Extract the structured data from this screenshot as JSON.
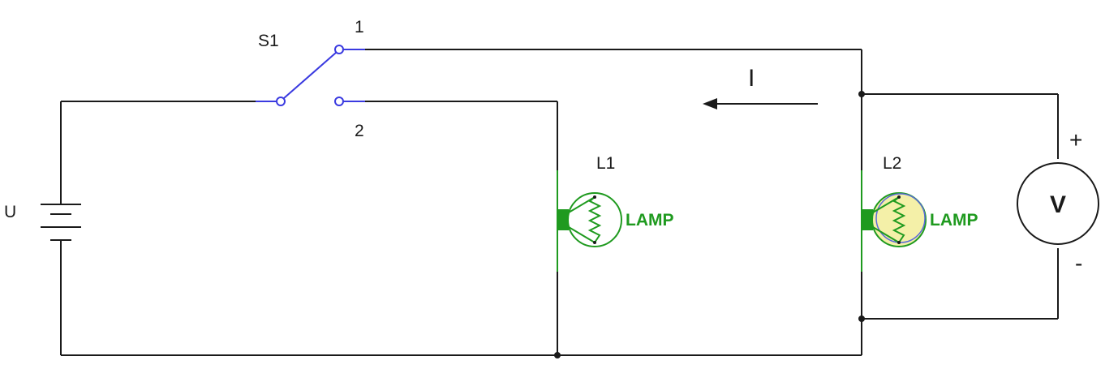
{
  "diagram": {
    "battery": {
      "label": "U"
    },
    "switch": {
      "label": "S1",
      "pos1_label": "1",
      "pos2_label": "2"
    },
    "lamp1": {
      "name": "L1",
      "type_label": "LAMP",
      "state": "off"
    },
    "lamp2": {
      "name": "L2",
      "type_label": "LAMP",
      "state": "on"
    },
    "current": {
      "label": "I"
    },
    "voltmeter": {
      "label": "V",
      "plus": "+",
      "minus": "-"
    }
  },
  "colors": {
    "wire": "#1a1a1a",
    "switch": "#3a3ae0",
    "lamp": "#1f9a1f",
    "lamp_lit": "#f4f0a8"
  }
}
